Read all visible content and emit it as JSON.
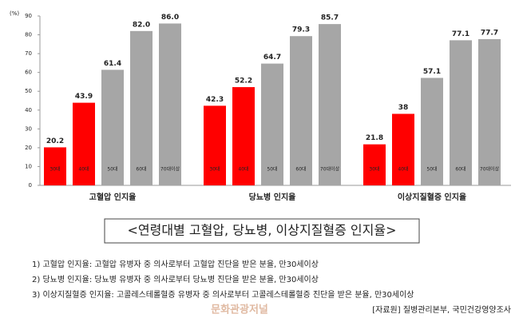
{
  "chart_data": {
    "type": "bar",
    "y_unit": "(%)",
    "categories": [
      "고혈압 인지율",
      "당뇨병 인지율",
      "이상지질혈증 인지율"
    ],
    "series": [
      {
        "name": "30대",
        "color": "#ff0000",
        "values": [
          20.2,
          42.3,
          21.8
        ]
      },
      {
        "name": "40대",
        "color": "#ff0000",
        "values": [
          43.9,
          52.2,
          38
        ]
      },
      {
        "name": "50대",
        "color": "#a6a6a6",
        "values": [
          61.4,
          64.7,
          57.1
        ]
      },
      {
        "name": "60대",
        "color": "#a6a6a6",
        "values": [
          82.0,
          79.3,
          77.1
        ],
        "value_labels": [
          "82.0",
          "79.3",
          "77.1"
        ]
      },
      {
        "name": "70대이상",
        "color": "#a6a6a6",
        "values": [
          86.0,
          85.7,
          77.7
        ],
        "value_labels": [
          "86.0",
          "85.7",
          "77.7"
        ]
      }
    ],
    "ylim": [
      0,
      90
    ],
    "yticks": [
      0,
      10,
      20,
      30,
      40,
      50,
      60,
      70,
      80,
      90
    ],
    "grid": false
  },
  "caption": "<연령대별 고혈압, 당뇨병, 이상지질혈증 인지율>",
  "notes": [
    "1) 고혈압 인지율: 고혈압 유병자 중 의사로부터 고혈압 진단을 받은 분율, 만30세이상",
    "2) 당뇨병 인지율: 당뇨병 유병자 중 의사로부터 당뇨병 진단을 받은 분율, 만30세이상",
    "3) 이상지질혈증 인지율: 고콜레스테롤혈증 유병자 중 의사로부터 고콜레스테롤혈증 진단을 받은 분율, 만30세이상"
  ],
  "source": "[자료원] 질병관리본부, 국민건강영양조사",
  "watermark": "문화관광저널"
}
